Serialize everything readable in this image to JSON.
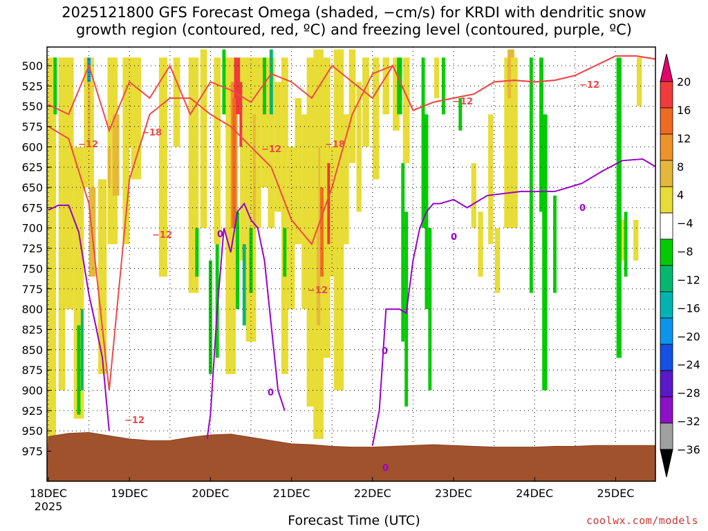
{
  "chart_data": {
    "type": "heatmap",
    "title": "2025121800 GFS Forecast Omega (shaded, −cm/s) for KRDI with dendritic snow\ngrowth region (contoured, red, ºC) and freezing level (contoured, purple, ºC)",
    "xlabel": "Forecast Time (UTC)",
    "ylabel": "",
    "x_tick_labels": [
      "18DEC",
      "19DEC",
      "20DEC",
      "21DEC",
      "22DEC",
      "23DEC",
      "24DEC",
      "25DEC"
    ],
    "x_year_label": "2025",
    "x_range_hours": [
      0,
      180
    ],
    "y_tick_labels": [
      "500",
      "525",
      "550",
      "575",
      "600",
      "625",
      "650",
      "675",
      "700",
      "725",
      "750",
      "775",
      "800",
      "825",
      "850",
      "875",
      "900",
      "925",
      "950",
      "975"
    ],
    "y_range_hpa": [
      482,
      990
    ],
    "colorbar": {
      "labels": [
        "20",
        "16",
        "12",
        "8",
        "4",
        "−4",
        "−8",
        "−12",
        "−16",
        "−20",
        "−24",
        "−28",
        "−32",
        "−36"
      ],
      "colors": [
        "#e8006e",
        "#f23a3a",
        "#f06a22",
        "#f0922a",
        "#e6b83a",
        "#e8dc36",
        "#ffffff",
        "#00cc00",
        "#00b870",
        "#00b4b4",
        "#0a96ee",
        "#1450e6",
        "#5a18c8",
        "#8c10c8",
        "#a0a0a0",
        "#000000"
      ]
    },
    "freezing_level_label": "0",
    "dendritic_labels": [
      "−12",
      "−18"
    ],
    "series": [
      {
        "name": "terrain_surface_hpa",
        "x": [
          0,
          6,
          12,
          18,
          24,
          30,
          36,
          42,
          48,
          54,
          60,
          66,
          72,
          78,
          84,
          90,
          96,
          102,
          108,
          114,
          120,
          126,
          132,
          138,
          144,
          150,
          156,
          162,
          168,
          174,
          180
        ],
        "values": [
          957,
          953,
          952,
          956,
          960,
          962,
          962,
          958,
          955,
          954,
          958,
          962,
          966,
          967,
          969,
          970,
          970,
          969,
          968,
          967,
          968,
          969,
          970,
          970,
          970,
          969,
          969,
          968,
          968,
          968,
          968
        ]
      },
      {
        "name": "freezing_level_0C_hpa",
        "x": [
          0,
          3,
          6,
          9,
          12,
          14,
          16,
          18
        ],
        "values": [
          678,
          672,
          672,
          705,
          782,
          820,
          860,
          950
        ]
      },
      {
        "name": "freezing_level_0C_hpa_day20",
        "x": [
          47,
          48,
          50,
          52,
          54,
          56,
          58,
          60,
          62,
          64,
          66,
          68,
          70
        ],
        "values": [
          960,
          930,
          800,
          700,
          730,
          680,
          670,
          690,
          700,
          740,
          820,
          900,
          925
        ]
      },
      {
        "name": "freezing_level_0C_hpa_late",
        "x": [
          96,
          98,
          100,
          104,
          106,
          108,
          110,
          112,
          114,
          116,
          120,
          124,
          130,
          140,
          150,
          158,
          164,
          170,
          176,
          180
        ],
        "values": [
          968,
          925,
          800,
          800,
          805,
          740,
          700,
          680,
          670,
          670,
          665,
          675,
          660,
          655,
          655,
          645,
          630,
          617,
          615,
          625
        ]
      },
      {
        "name": "dendritic_minus12C_upper_hpa",
        "x": [
          0,
          6,
          12,
          18,
          24,
          30,
          36,
          42,
          48,
          54,
          60,
          66,
          72,
          78,
          84,
          90,
          96,
          102,
          108,
          114,
          120,
          126,
          132,
          138,
          144,
          150,
          156,
          162,
          168,
          174,
          180
        ],
        "values": [
          548,
          560,
          500,
          580,
          520,
          540,
          500,
          560,
          520,
          530,
          545,
          510,
          520,
          540,
          500,
          520,
          540,
          500,
          555,
          545,
          540,
          535,
          520,
          518,
          520,
          518,
          512,
          500,
          488,
          488,
          492
        ]
      },
      {
        "name": "dendritic_minus12C_lower_hpa",
        "x": [
          0,
          6,
          12,
          18,
          24,
          30,
          36,
          42,
          48,
          54,
          60,
          66,
          72,
          78,
          84,
          90,
          96,
          102,
          108,
          114,
          120,
          126,
          132,
          138,
          144,
          150,
          156,
          162,
          168,
          174,
          180
        ],
        "values": [
          575,
          590,
          670,
          900,
          640,
          560,
          540,
          540,
          560,
          575,
          600,
          625,
          690,
          720,
          650,
          560,
          510,
          500,
          555,
          545,
          540,
          535,
          520,
          518,
          520,
          518,
          512,
          500,
          488,
          488,
          492
        ]
      }
    ]
  },
  "credit": "coolwx.com/models"
}
